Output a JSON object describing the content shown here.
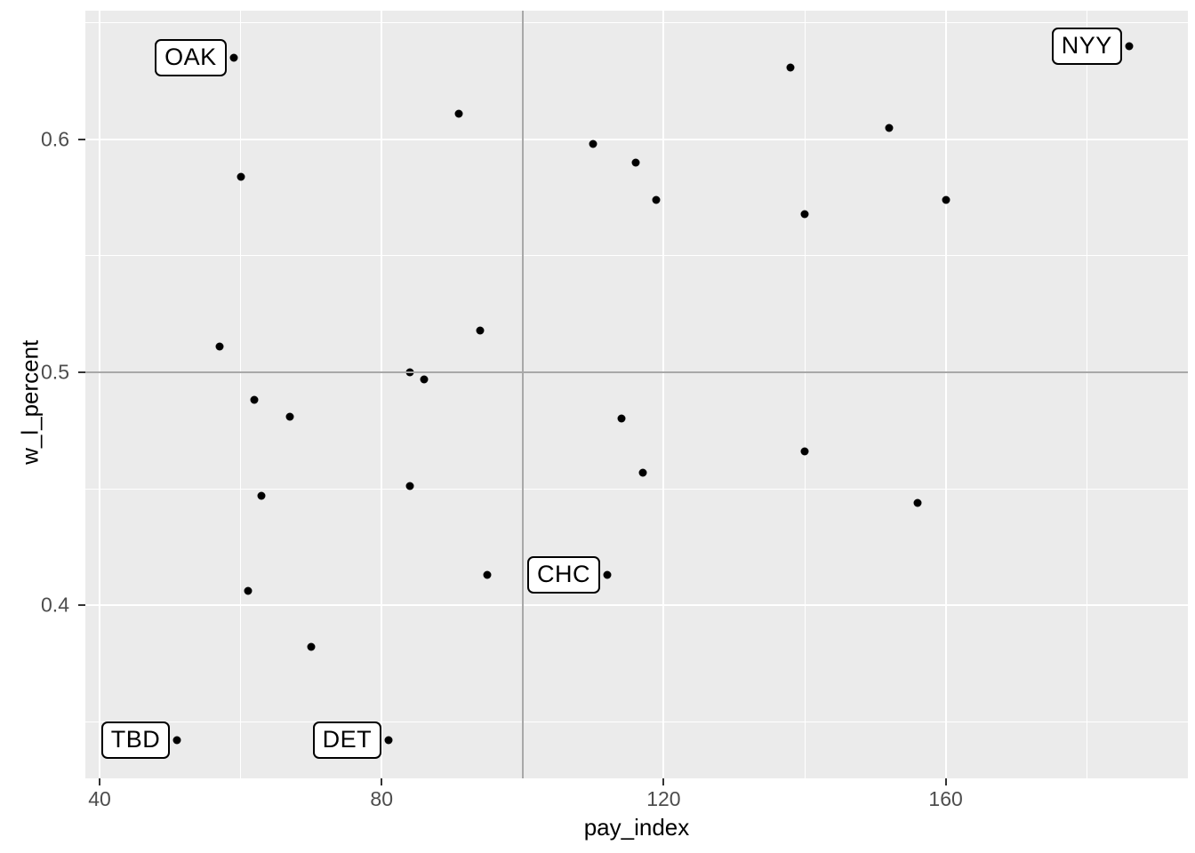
{
  "chart_data": {
    "type": "scatter",
    "title": "",
    "xlabel": "pay_index",
    "ylabel": "w_l_percent",
    "xlim": [
      37.98,
      194.35
    ],
    "ylim": [
      0.3256,
      0.6553
    ],
    "x_ticks": [
      40,
      80,
      120,
      160
    ],
    "y_ticks": [
      0.4,
      0.5,
      0.6
    ],
    "grid": {
      "major_x": [
        40,
        80,
        120,
        160
      ],
      "minor_x": [
        60,
        100,
        140,
        180
      ],
      "major_y": [
        0.4,
        0.5,
        0.6
      ],
      "minor_y": [
        0.35,
        0.45,
        0.55,
        0.65
      ]
    },
    "reference_lines": {
      "vertical_x": 100,
      "horizontal_y": 0.5
    },
    "legend": "none",
    "points": [
      {
        "x": 59,
        "y": 0.635,
        "label": "OAK"
      },
      {
        "x": 186,
        "y": 0.64,
        "label": "NYY"
      },
      {
        "x": 51,
        "y": 0.342,
        "label": "TBD"
      },
      {
        "x": 81,
        "y": 0.342,
        "label": "DET"
      },
      {
        "x": 112,
        "y": 0.413,
        "label": "CHC"
      },
      {
        "x": 60,
        "y": 0.584,
        "label": ""
      },
      {
        "x": 91,
        "y": 0.611,
        "label": ""
      },
      {
        "x": 110,
        "y": 0.598,
        "label": ""
      },
      {
        "x": 116,
        "y": 0.59,
        "label": ""
      },
      {
        "x": 119,
        "y": 0.574,
        "label": ""
      },
      {
        "x": 138,
        "y": 0.631,
        "label": ""
      },
      {
        "x": 152,
        "y": 0.605,
        "label": ""
      },
      {
        "x": 140,
        "y": 0.568,
        "label": ""
      },
      {
        "x": 160,
        "y": 0.574,
        "label": ""
      },
      {
        "x": 57,
        "y": 0.511,
        "label": ""
      },
      {
        "x": 62,
        "y": 0.488,
        "label": ""
      },
      {
        "x": 67,
        "y": 0.481,
        "label": ""
      },
      {
        "x": 84,
        "y": 0.5,
        "label": ""
      },
      {
        "x": 86,
        "y": 0.497,
        "label": ""
      },
      {
        "x": 94,
        "y": 0.518,
        "label": ""
      },
      {
        "x": 84,
        "y": 0.451,
        "label": ""
      },
      {
        "x": 63,
        "y": 0.447,
        "label": ""
      },
      {
        "x": 61,
        "y": 0.406,
        "label": ""
      },
      {
        "x": 114,
        "y": 0.48,
        "label": ""
      },
      {
        "x": 117,
        "y": 0.457,
        "label": ""
      },
      {
        "x": 140,
        "y": 0.466,
        "label": ""
      },
      {
        "x": 156,
        "y": 0.444,
        "label": ""
      },
      {
        "x": 95,
        "y": 0.413,
        "label": ""
      },
      {
        "x": 70,
        "y": 0.382,
        "label": ""
      }
    ],
    "colors": {
      "panel_bg": "#EBEBEB",
      "grid_major": "#FFFFFF",
      "grid_minor": "#FFFFFF",
      "reference_line": "#A8A8A8",
      "point": "#000000",
      "tick_label": "#4D4D4D",
      "axis_title": "#000000",
      "label_box_bg": "#FFFFFF",
      "label_box_border": "#000000"
    }
  }
}
